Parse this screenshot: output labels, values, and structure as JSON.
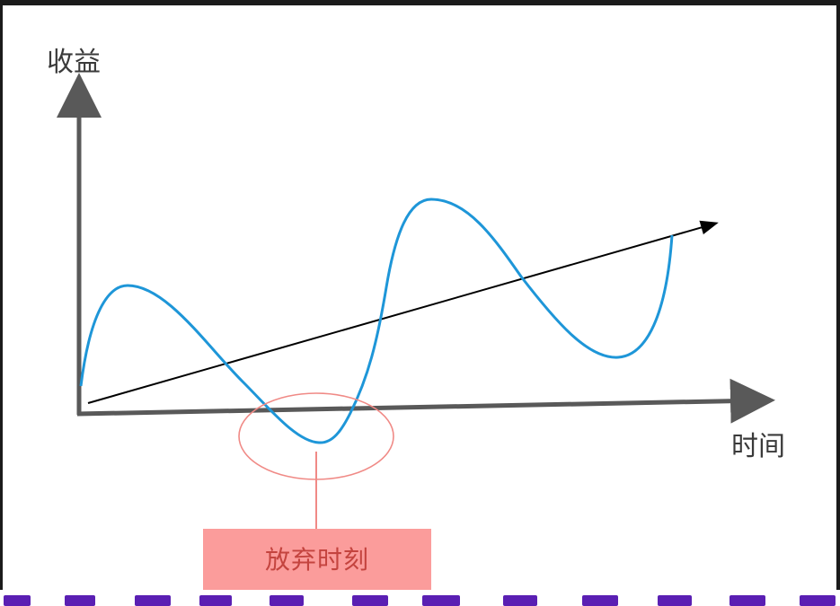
{
  "diagram": {
    "y_axis_label": "收益",
    "x_axis_label": "时间",
    "callout_label": "放弃时刻",
    "colors": {
      "axis": "#595959",
      "curve": "#1e96d8",
      "trend": "#000000",
      "highlight_ellipse": "#f08a86",
      "callout_fill": "#fb9c9b",
      "callout_text": "#c4443f",
      "caption_strip": "#5a1fb3"
    }
  }
}
